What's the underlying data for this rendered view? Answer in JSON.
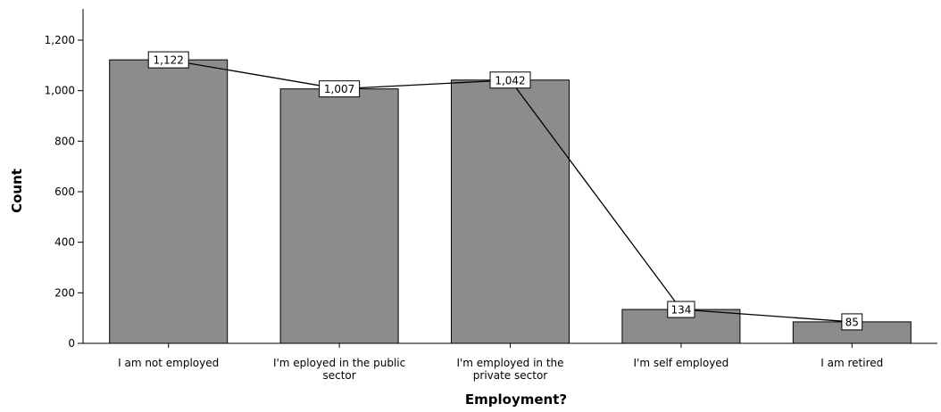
{
  "chart_data": {
    "type": "bar",
    "title": "",
    "xlabel": "Employment?",
    "ylabel": "Count",
    "ylim": [
      0,
      1300
    ],
    "yticks": [
      0,
      200,
      400,
      600,
      800,
      1000,
      1200
    ],
    "ytick_labels": [
      "0",
      "200",
      "400",
      "600",
      "800",
      "1,000",
      "1,200"
    ],
    "categories": [
      [
        "I am not employed"
      ],
      [
        "I'm eployed in the public",
        "sector"
      ],
      [
        "I'm employed in the",
        "private sector"
      ],
      [
        "I'm self employed"
      ],
      [
        "I am retired"
      ]
    ],
    "values": [
      1122,
      1007,
      1042,
      134,
      85
    ],
    "data_labels": [
      "1,122",
      "1,007",
      "1,042",
      "134",
      "85"
    ],
    "overlay_line": true,
    "grid": false,
    "bar_color": "#8c8c8c"
  }
}
